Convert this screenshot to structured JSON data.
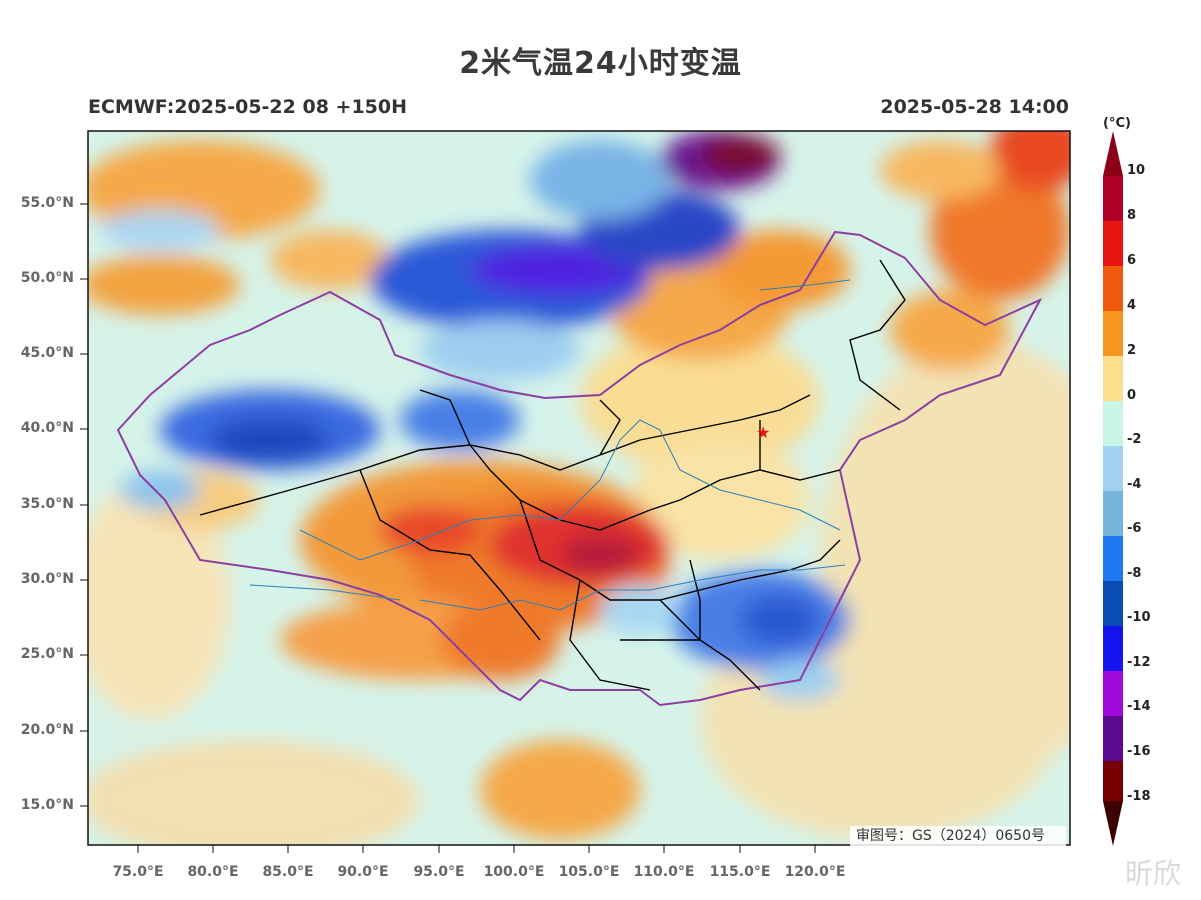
{
  "title": "2米气温24小时变温",
  "subtitle_left": "ECMWF:2025-05-22 08 +150H",
  "subtitle_right": "2025-05-28 14:00",
  "lat_labels": [
    "55.0°N",
    "50.0°N",
    "45.0°N",
    "40.0°N",
    "35.0°N",
    "30.0°N",
    "25.0°N",
    "20.0°N",
    "15.0°N"
  ],
  "lon_labels": [
    "75.0°E",
    "80.0°E",
    "85.0°E",
    "90.0°E",
    "95.0°E",
    "100.0°E",
    "105.0°E",
    "110.0°E",
    "115.0°E",
    "120.0°E"
  ],
  "colorbar": {
    "unit": "(°C)",
    "labels": [
      "10",
      "8",
      "6",
      "4",
      "2",
      "0",
      "-2",
      "-4",
      "-6",
      "-8",
      "-10",
      "-12",
      "-14",
      "-16",
      "-18"
    ],
    "colors": [
      "#b00027",
      "#c8102e",
      "#e8140f",
      "#f05a0f",
      "#f5961e",
      "#fae08c",
      "#c8f5e6",
      "#a0d2f0",
      "#78b4dc",
      "#1e78f0",
      "#0a4bb4",
      "#1414f0",
      "#a00adc",
      "#5a0a8c",
      "#780000"
    ],
    "top_color": "#8c0018",
    "bottom_color": "#3c0000"
  },
  "review_number": "审图号：GS（2024）0650号",
  "watermark": "昕欣",
  "marker": "beijing-star"
}
